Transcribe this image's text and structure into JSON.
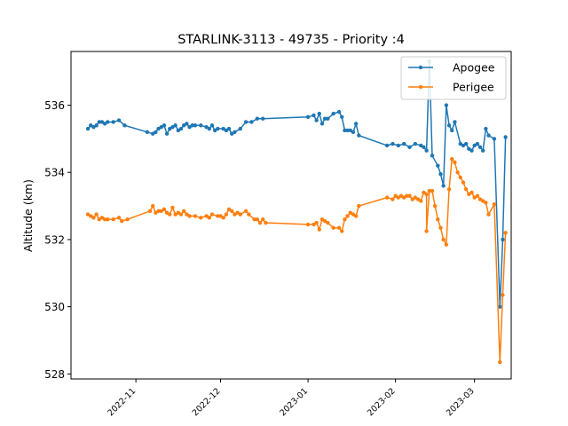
{
  "chart_data": {
    "type": "line",
    "title": "STARLINK-3113 - 49735 - Priority :4",
    "xlabel": "",
    "ylabel": "Altitude (km)",
    "xlim": [
      "2022-10-09",
      "2023-03-14"
    ],
    "ylim": [
      527.85,
      537.6
    ],
    "x_ticks": [
      "2022-11",
      "2022-12",
      "2023-01",
      "2023-02",
      "2023-03"
    ],
    "y_ticks": [
      528,
      530,
      532,
      534,
      536
    ],
    "grid": false,
    "legend_position": "upper right",
    "series": [
      {
        "name": "Apogee",
        "color": "#1f77b4",
        "marker": "circle",
        "points": [
          [
            "2022-10-15",
            535.3
          ],
          [
            "2022-10-16",
            535.4
          ],
          [
            "2022-10-17",
            535.35
          ],
          [
            "2022-10-18",
            535.4
          ],
          [
            "2022-10-19",
            535.5
          ],
          [
            "2022-10-20",
            535.5
          ],
          [
            "2022-10-21",
            535.45
          ],
          [
            "2022-10-22",
            535.5
          ],
          [
            "2022-10-24",
            535.5
          ],
          [
            "2022-10-26",
            535.55
          ],
          [
            "2022-10-28",
            535.4
          ],
          [
            "2022-11-05",
            535.2
          ],
          [
            "2022-11-07",
            535.15
          ],
          [
            "2022-11-08",
            535.2
          ],
          [
            "2022-11-09",
            535.3
          ],
          [
            "2022-11-10",
            535.35
          ],
          [
            "2022-11-11",
            535.4
          ],
          [
            "2022-11-12",
            535.15
          ],
          [
            "2022-11-13",
            535.3
          ],
          [
            "2022-11-14",
            535.35
          ],
          [
            "2022-11-15",
            535.4
          ],
          [
            "2022-11-16",
            535.25
          ],
          [
            "2022-11-17",
            535.3
          ],
          [
            "2022-11-18",
            535.4
          ],
          [
            "2022-11-19",
            535.45
          ],
          [
            "2022-11-20",
            535.35
          ],
          [
            "2022-11-21",
            535.4
          ],
          [
            "2022-11-22",
            535.4
          ],
          [
            "2022-11-24",
            535.4
          ],
          [
            "2022-11-26",
            535.35
          ],
          [
            "2022-11-27",
            535.3
          ],
          [
            "2022-11-28",
            535.4
          ],
          [
            "2022-11-29",
            535.25
          ],
          [
            "2022-11-30",
            535.3
          ],
          [
            "2022-12-02",
            535.3
          ],
          [
            "2022-12-03",
            535.25
          ],
          [
            "2022-12-04",
            535.3
          ],
          [
            "2022-12-05",
            535.15
          ],
          [
            "2022-12-06",
            535.2
          ],
          [
            "2022-12-08",
            535.3
          ],
          [
            "2022-12-10",
            535.5
          ],
          [
            "2022-12-12",
            535.5
          ],
          [
            "2022-12-14",
            535.6
          ],
          [
            "2022-12-16",
            535.6
          ],
          [
            "2023-01-01",
            535.65
          ],
          [
            "2023-01-03",
            535.7
          ],
          [
            "2023-01-04",
            535.55
          ],
          [
            "2023-01-05",
            535.75
          ],
          [
            "2023-01-06",
            535.45
          ],
          [
            "2023-01-07",
            535.6
          ],
          [
            "2023-01-08",
            535.6
          ],
          [
            "2023-01-10",
            535.75
          ],
          [
            "2023-01-12",
            535.8
          ],
          [
            "2023-01-13",
            535.65
          ],
          [
            "2023-01-14",
            535.25
          ],
          [
            "2023-01-15",
            535.25
          ],
          [
            "2023-01-16",
            535.25
          ],
          [
            "2023-01-17",
            535.2
          ],
          [
            "2023-01-18",
            535.45
          ],
          [
            "2023-01-19",
            535.1
          ],
          [
            "2023-01-29",
            534.8
          ],
          [
            "2023-01-31",
            534.85
          ],
          [
            "2023-02-02",
            534.8
          ],
          [
            "2023-02-04",
            534.85
          ],
          [
            "2023-02-06",
            534.75
          ],
          [
            "2023-02-08",
            534.85
          ],
          [
            "2023-02-10",
            534.8
          ],
          [
            "2023-02-11",
            534.75
          ],
          [
            "2023-02-12",
            534.65
          ],
          [
            "2023-02-13",
            537.3
          ],
          [
            "2023-02-14",
            534.5
          ],
          [
            "2023-02-16",
            534.2
          ],
          [
            "2023-02-17",
            533.95
          ],
          [
            "2023-02-18",
            533.6
          ],
          [
            "2023-02-19",
            536.0
          ],
          [
            "2023-02-20",
            535.4
          ],
          [
            "2023-02-21",
            535.25
          ],
          [
            "2023-02-22",
            535.5
          ],
          [
            "2023-02-24",
            534.85
          ],
          [
            "2023-02-25",
            534.8
          ],
          [
            "2023-02-26",
            534.85
          ],
          [
            "2023-02-27",
            534.7
          ],
          [
            "2023-02-28",
            534.65
          ],
          [
            "2023-03-01",
            534.8
          ],
          [
            "2023-03-02",
            534.85
          ],
          [
            "2023-03-03",
            534.75
          ],
          [
            "2023-03-04",
            534.65
          ],
          [
            "2023-03-05",
            535.3
          ],
          [
            "2023-03-06",
            535.1
          ],
          [
            "2023-03-08",
            535.0
          ],
          [
            "2023-03-10",
            530.0
          ],
          [
            "2023-03-11",
            532.0
          ],
          [
            "2023-03-12",
            535.05
          ]
        ]
      },
      {
        "name": "Perigee",
        "color": "#ff7f0e",
        "marker": "circle",
        "points": [
          [
            "2022-10-15",
            532.75
          ],
          [
            "2022-10-16",
            532.7
          ],
          [
            "2022-10-17",
            532.65
          ],
          [
            "2022-10-18",
            532.75
          ],
          [
            "2022-10-19",
            532.6
          ],
          [
            "2022-10-20",
            532.65
          ],
          [
            "2022-10-21",
            532.6
          ],
          [
            "2022-10-22",
            532.6
          ],
          [
            "2022-10-24",
            532.6
          ],
          [
            "2022-10-26",
            532.65
          ],
          [
            "2022-10-27",
            532.55
          ],
          [
            "2022-10-29",
            532.6
          ],
          [
            "2022-11-06",
            532.85
          ],
          [
            "2022-11-07",
            533.0
          ],
          [
            "2022-11-08",
            532.8
          ],
          [
            "2022-11-09",
            532.85
          ],
          [
            "2022-11-10",
            532.85
          ],
          [
            "2022-11-11",
            532.9
          ],
          [
            "2022-11-12",
            532.8
          ],
          [
            "2022-11-13",
            532.75
          ],
          [
            "2022-11-14",
            532.95
          ],
          [
            "2022-11-15",
            532.75
          ],
          [
            "2022-11-16",
            532.8
          ],
          [
            "2022-11-17",
            532.75
          ],
          [
            "2022-11-18",
            532.85
          ],
          [
            "2022-11-19",
            532.75
          ],
          [
            "2022-11-20",
            532.7
          ],
          [
            "2022-11-22",
            532.7
          ],
          [
            "2022-11-24",
            532.65
          ],
          [
            "2022-11-26",
            532.7
          ],
          [
            "2022-11-27",
            532.65
          ],
          [
            "2022-11-28",
            532.75
          ],
          [
            "2022-11-30",
            532.7
          ],
          [
            "2022-12-01",
            532.7
          ],
          [
            "2022-12-02",
            532.65
          ],
          [
            "2022-12-03",
            532.75
          ],
          [
            "2022-12-04",
            532.9
          ],
          [
            "2022-12-05",
            532.85
          ],
          [
            "2022-12-06",
            532.75
          ],
          [
            "2022-12-07",
            532.8
          ],
          [
            "2022-12-08",
            532.75
          ],
          [
            "2022-12-10",
            532.85
          ],
          [
            "2022-12-11",
            532.75
          ],
          [
            "2022-12-13",
            532.6
          ],
          [
            "2022-12-14",
            532.6
          ],
          [
            "2022-12-15",
            532.5
          ],
          [
            "2022-12-16",
            532.6
          ],
          [
            "2022-12-17",
            532.5
          ],
          [
            "2023-01-01",
            532.45
          ],
          [
            "2023-01-03",
            532.45
          ],
          [
            "2023-01-04",
            532.5
          ],
          [
            "2023-01-05",
            532.3
          ],
          [
            "2023-01-06",
            532.6
          ],
          [
            "2023-01-07",
            532.55
          ],
          [
            "2023-01-08",
            532.5
          ],
          [
            "2023-01-10",
            532.35
          ],
          [
            "2023-01-12",
            532.35
          ],
          [
            "2023-01-13",
            532.25
          ],
          [
            "2023-01-14",
            532.6
          ],
          [
            "2023-01-15",
            532.7
          ],
          [
            "2023-01-16",
            532.8
          ],
          [
            "2023-01-17",
            532.75
          ],
          [
            "2023-01-18",
            532.7
          ],
          [
            "2023-01-19",
            533.0
          ],
          [
            "2023-01-29",
            533.25
          ],
          [
            "2023-01-31",
            533.2
          ],
          [
            "2023-02-01",
            533.3
          ],
          [
            "2023-02-02",
            533.25
          ],
          [
            "2023-02-03",
            533.3
          ],
          [
            "2023-02-04",
            533.25
          ],
          [
            "2023-02-05",
            533.3
          ],
          [
            "2023-02-06",
            533.3
          ],
          [
            "2023-02-07",
            533.2
          ],
          [
            "2023-02-08",
            533.25
          ],
          [
            "2023-02-09",
            533.2
          ],
          [
            "2023-02-10",
            533.15
          ],
          [
            "2023-02-11",
            533.4
          ],
          [
            "2023-02-12",
            533.35
          ],
          [
            "2023-02-12",
            532.25
          ],
          [
            "2023-02-13",
            533.45
          ],
          [
            "2023-02-14",
            533.45
          ],
          [
            "2023-02-15",
            533.0
          ],
          [
            "2023-02-16",
            532.6
          ],
          [
            "2023-02-17",
            532.35
          ],
          [
            "2023-02-18",
            532.0
          ],
          [
            "2023-02-19",
            531.85
          ],
          [
            "2023-02-20",
            533.5
          ],
          [
            "2023-02-21",
            534.4
          ],
          [
            "2023-02-22",
            534.3
          ],
          [
            "2023-02-23",
            534.0
          ],
          [
            "2023-02-24",
            533.85
          ],
          [
            "2023-02-25",
            533.7
          ],
          [
            "2023-02-26",
            533.5
          ],
          [
            "2023-02-27",
            533.35
          ],
          [
            "2023-02-28",
            533.4
          ],
          [
            "2023-03-01",
            533.25
          ],
          [
            "2023-03-02",
            533.3
          ],
          [
            "2023-03-03",
            533.2
          ],
          [
            "2023-03-04",
            533.15
          ],
          [
            "2023-03-05",
            533.1
          ],
          [
            "2023-03-06",
            532.75
          ],
          [
            "2023-03-08",
            533.05
          ],
          [
            "2023-03-10",
            528.35
          ],
          [
            "2023-03-11",
            530.35
          ],
          [
            "2023-03-12",
            532.2
          ]
        ]
      }
    ]
  }
}
